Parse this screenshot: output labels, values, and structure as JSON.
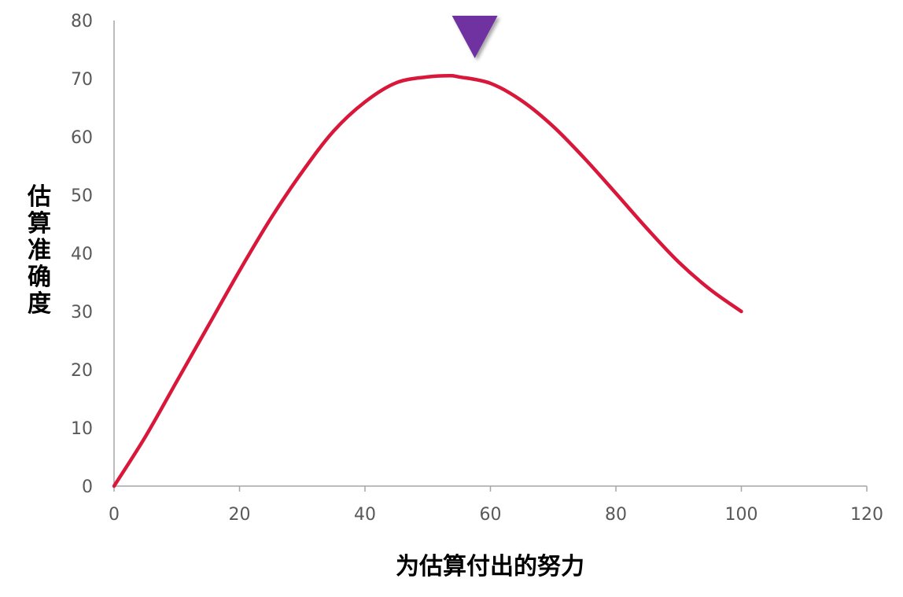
{
  "chart_data": {
    "type": "line",
    "xlabel": "为估算付出的努力",
    "ylabel": "估算准确度",
    "xlim": [
      0,
      120
    ],
    "ylim": [
      0,
      80
    ],
    "xticks": [
      0,
      20,
      40,
      60,
      80,
      100,
      120
    ],
    "yticks": [
      0,
      10,
      20,
      30,
      40,
      50,
      60,
      70,
      80
    ],
    "grid": false,
    "series": [
      {
        "color": "#d8173a",
        "x": [
          0,
          5,
          10,
          15,
          20,
          25,
          30,
          35,
          40,
          45,
          50,
          53.5,
          55,
          60,
          65,
          70,
          75,
          80,
          85,
          90,
          95,
          100
        ],
        "y": [
          0,
          8.5,
          18,
          27.5,
          37,
          46,
          54,
          61,
          66,
          69.3,
          70.3,
          70.5,
          70.3,
          69.2,
          66.2,
          61.8,
          56.3,
          50.3,
          44.2,
          38.5,
          33.8,
          30
        ]
      }
    ],
    "annotations": [
      {
        "type": "marker",
        "shape": "down-triangle",
        "x": 57.5,
        "color": "#7030a0"
      }
    ]
  }
}
